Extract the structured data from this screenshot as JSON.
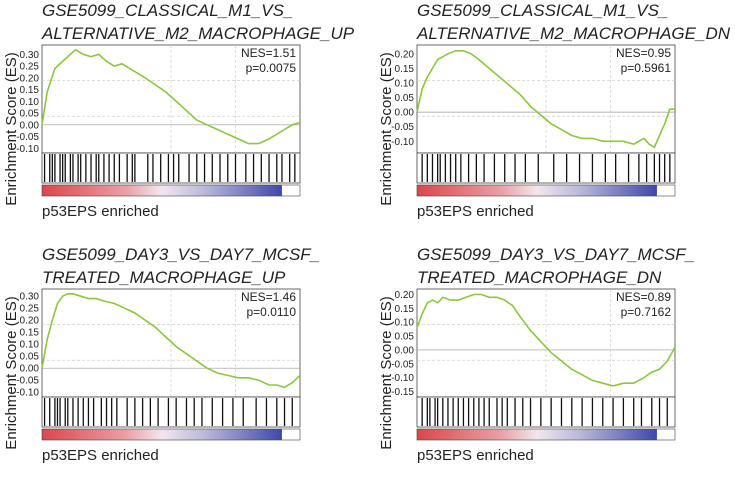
{
  "chart_data": [
    {
      "type": "line",
      "title_line1": "GSE5099_CLASSICAL_M1_VS_",
      "title_line2": "ALTERNATIVE_M2_MACROPHAGE_UP",
      "ylabel": "Enrichment Score (ES)",
      "xlabel": "p53EPS enriched",
      "nes": "NES=1.51",
      "pvalue": "p=0.0075",
      "ylim": [
        -0.12,
        0.34
      ],
      "yticks": [
        "0.30",
        "0.25",
        "0.20",
        "0.15",
        "0.10",
        "0.05",
        "0.00",
        "-0.05",
        "-0.10"
      ],
      "ytick_values": [
        0.3,
        0.25,
        0.2,
        0.15,
        0.1,
        0.05,
        0.0,
        -0.05,
        -0.1
      ],
      "es_x": [
        0,
        0.02,
        0.05,
        0.08,
        0.1,
        0.13,
        0.16,
        0.19,
        0.22,
        0.25,
        0.28,
        0.31,
        0.34,
        0.37,
        0.4,
        0.44,
        0.48,
        0.52,
        0.56,
        0.6,
        0.64,
        0.68,
        0.72,
        0.76,
        0.8,
        0.84,
        0.88,
        0.91,
        0.94,
        0.97,
        1.0
      ],
      "es_y": [
        0,
        0.14,
        0.24,
        0.27,
        0.29,
        0.32,
        0.3,
        0.29,
        0.3,
        0.27,
        0.25,
        0.26,
        0.24,
        0.22,
        0.2,
        0.17,
        0.14,
        0.1,
        0.06,
        0.02,
        0.0,
        -0.02,
        -0.04,
        -0.06,
        -0.08,
        -0.08,
        -0.06,
        -0.04,
        -0.02,
        0.0,
        0.01
      ],
      "hits": [
        0.01,
        0.03,
        0.04,
        0.05,
        0.07,
        0.08,
        0.09,
        0.11,
        0.12,
        0.14,
        0.15,
        0.17,
        0.19,
        0.21,
        0.22,
        0.24,
        0.26,
        0.28,
        0.3,
        0.33,
        0.35,
        0.36,
        0.41,
        0.43,
        0.46,
        0.49,
        0.51,
        0.53,
        0.57,
        0.6,
        0.63,
        0.66,
        0.69,
        0.72,
        0.75,
        0.79,
        0.82,
        0.85,
        0.88,
        0.91,
        0.93,
        0.96,
        0.98
      ]
    },
    {
      "type": "line",
      "title_line1": "GSE5099_CLASSICAL_M1_VS_",
      "title_line2": "ALTERNATIVE_M2_MACROPHAGE_DN",
      "ylabel": "Enrichment Score (ES)",
      "xlabel": "p53EPS enriched",
      "nes": "NES=0.95",
      "pvalue": "p=0.5961",
      "ylim": [
        -0.14,
        0.23
      ],
      "yticks": [
        "0.20",
        "0.15",
        "0.10",
        "0.05",
        "0.00",
        "-0.05",
        "-0.10"
      ],
      "ytick_values": [
        0.2,
        0.15,
        0.1,
        0.05,
        0.0,
        -0.05,
        -0.1
      ],
      "es_x": [
        0,
        0.02,
        0.04,
        0.06,
        0.08,
        0.1,
        0.12,
        0.15,
        0.18,
        0.21,
        0.24,
        0.28,
        0.32,
        0.36,
        0.4,
        0.44,
        0.48,
        0.52,
        0.56,
        0.6,
        0.64,
        0.68,
        0.72,
        0.76,
        0.8,
        0.84,
        0.88,
        0.9,
        0.92,
        0.94,
        0.96,
        0.98,
        1.0
      ],
      "es_y": [
        0,
        0.08,
        0.12,
        0.15,
        0.18,
        0.19,
        0.2,
        0.21,
        0.21,
        0.2,
        0.18,
        0.15,
        0.12,
        0.09,
        0.06,
        0.02,
        -0.01,
        -0.04,
        -0.06,
        -0.08,
        -0.09,
        -0.09,
        -0.1,
        -0.1,
        -0.1,
        -0.11,
        -0.09,
        -0.11,
        -0.12,
        -0.08,
        -0.04,
        0.01,
        0.01
      ],
      "hits": [
        0.02,
        0.04,
        0.06,
        0.08,
        0.09,
        0.11,
        0.13,
        0.15,
        0.17,
        0.2,
        0.23,
        0.26,
        0.3,
        0.34,
        0.38,
        0.42,
        0.47,
        0.53,
        0.58,
        0.63,
        0.68,
        0.73,
        0.77,
        0.82,
        0.86,
        0.89,
        0.92,
        0.94,
        0.96,
        0.98
      ]
    },
    {
      "type": "line",
      "title_line1": "GSE5099_DAY3_VS_DAY7_MCSF_",
      "title_line2": "TREATED_MACROPHAGE_UP",
      "ylabel": "Enrichment Score (ES)",
      "xlabel": "p53EPS enriched",
      "nes": "NES=1.46",
      "pvalue": "p=0.0110",
      "ylim": [
        -0.12,
        0.33
      ],
      "yticks": [
        "0.30",
        "0.25",
        "0.20",
        "0.15",
        "0.10",
        "0.05",
        "0.00",
        "-0.05",
        "-0.10"
      ],
      "ytick_values": [
        0.3,
        0.25,
        0.2,
        0.15,
        0.1,
        0.05,
        0.0,
        -0.05,
        -0.1
      ],
      "es_x": [
        0,
        0.02,
        0.04,
        0.06,
        0.08,
        0.1,
        0.12,
        0.15,
        0.18,
        0.21,
        0.24,
        0.28,
        0.32,
        0.36,
        0.4,
        0.44,
        0.48,
        0.52,
        0.56,
        0.6,
        0.64,
        0.68,
        0.72,
        0.76,
        0.8,
        0.84,
        0.88,
        0.91,
        0.94,
        0.97,
        1.0
      ],
      "es_y": [
        0,
        0.12,
        0.2,
        0.27,
        0.3,
        0.31,
        0.31,
        0.3,
        0.29,
        0.29,
        0.28,
        0.27,
        0.25,
        0.23,
        0.2,
        0.17,
        0.13,
        0.09,
        0.06,
        0.03,
        0.0,
        -0.02,
        -0.03,
        -0.04,
        -0.04,
        -0.05,
        -0.07,
        -0.07,
        -0.08,
        -0.06,
        -0.03
      ],
      "hits": [
        0.01,
        0.03,
        0.05,
        0.06,
        0.07,
        0.09,
        0.1,
        0.12,
        0.14,
        0.16,
        0.18,
        0.2,
        0.23,
        0.25,
        0.27,
        0.29,
        0.33,
        0.36,
        0.39,
        0.42,
        0.45,
        0.49,
        0.52,
        0.56,
        0.59,
        0.62,
        0.66,
        0.7,
        0.74,
        0.78,
        0.83,
        0.87,
        0.91,
        0.94,
        0.97
      ]
    },
    {
      "type": "line",
      "title_line1": "GSE5099_DAY3_VS_DAY7_MCSF_",
      "title_line2": "TREATED_MACROPHAGE_DN",
      "ylabel": "Enrichment Score (ES)",
      "xlabel": "p53EPS enriched",
      "nes": "NES=0.89",
      "pvalue": "p=0.7162",
      "ylim": [
        -0.17,
        0.22
      ],
      "yticks": [
        "0.20",
        "0.15",
        "0.10",
        "0.05",
        "0.00",
        "-0.05",
        "-0.10",
        "-0.15"
      ],
      "ytick_values": [
        0.2,
        0.15,
        0.1,
        0.05,
        0.0,
        -0.05,
        -0.1,
        -0.15
      ],
      "es_x": [
        0,
        0.02,
        0.04,
        0.06,
        0.08,
        0.1,
        0.13,
        0.16,
        0.19,
        0.22,
        0.25,
        0.28,
        0.31,
        0.34,
        0.37,
        0.4,
        0.44,
        0.48,
        0.52,
        0.56,
        0.6,
        0.64,
        0.68,
        0.72,
        0.76,
        0.8,
        0.84,
        0.88,
        0.91,
        0.94,
        0.97,
        1.0
      ],
      "es_y": [
        0.08,
        0.13,
        0.17,
        0.18,
        0.17,
        0.19,
        0.18,
        0.18,
        0.19,
        0.2,
        0.2,
        0.19,
        0.19,
        0.18,
        0.16,
        0.12,
        0.07,
        0.03,
        -0.01,
        -0.04,
        -0.07,
        -0.09,
        -0.11,
        -0.12,
        -0.13,
        -0.12,
        -0.12,
        -0.1,
        -0.08,
        -0.07,
        -0.04,
        0.01
      ],
      "hits": [
        0.02,
        0.04,
        0.05,
        0.07,
        0.08,
        0.1,
        0.12,
        0.14,
        0.16,
        0.18,
        0.2,
        0.22,
        0.24,
        0.26,
        0.28,
        0.31,
        0.33,
        0.35,
        0.38,
        0.41,
        0.44,
        0.48,
        0.52,
        0.56,
        0.6,
        0.64,
        0.68,
        0.72,
        0.76,
        0.8,
        0.84,
        0.87,
        0.91,
        0.94,
        0.97
      ]
    }
  ],
  "colors": {
    "es_line": "#8cc63f",
    "grid": "#cfcfcf",
    "axis": "#444444",
    "rank_red": "#d9474a",
    "rank_mid": "#f2e6ee",
    "rank_blue": "#3f48a8"
  }
}
